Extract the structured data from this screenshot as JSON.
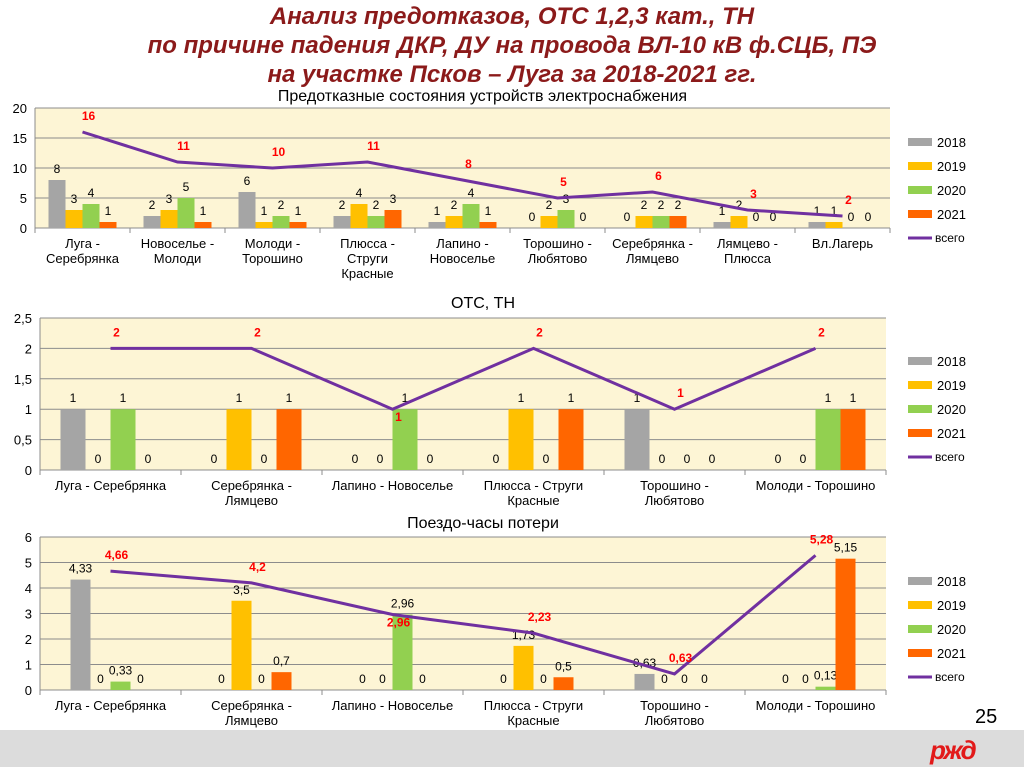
{
  "slide": {
    "title_lines": [
      "Анализ предотказов, ОТС 1,2,3 кат., ТН",
      "по причине падения ДКР, ДУ на провода ВЛ-10 кВ ф.СЦБ, ПЭ",
      "на участке Псков – Луга за 2018-2021 гг."
    ],
    "page_number": "25",
    "logo_text": "РЖД"
  },
  "colors": {
    "2018": "#A5A5A5",
    "2019": "#FFC000",
    "2020": "#92D050",
    "2021": "#FF6600",
    "total": "#7030A0",
    "plot_bg": "#FDF5D5",
    "total_label": "#FF0000"
  },
  "chart_data": [
    {
      "type": "bar",
      "title": "Предотказные состояния устройств электроснабжения",
      "ylim": [
        0,
        20
      ],
      "yticks": [
        0,
        5,
        10,
        15,
        20
      ],
      "grid": true,
      "legend": "right",
      "categories": [
        [
          "Луга -",
          "Серебрянка"
        ],
        [
          "Новоселье -",
          "Молоди"
        ],
        [
          "Молоди -",
          "Торошино"
        ],
        [
          "Плюсса -",
          "Струги",
          "Красные"
        ],
        [
          "Лапино -",
          "Новоселье"
        ],
        [
          "Торошино -",
          "Любятово"
        ],
        [
          "Серебрянка -",
          "Лямцево"
        ],
        [
          "Лямцево -",
          "Плюсса"
        ],
        [
          "Вл.Лагерь"
        ]
      ],
      "series": [
        {
          "name": "2018",
          "values": [
            8,
            2,
            6,
            2,
            1,
            0,
            0,
            1,
            1
          ]
        },
        {
          "name": "2019",
          "values": [
            3,
            3,
            1,
            4,
            2,
            2,
            2,
            2,
            1
          ]
        },
        {
          "name": "2020",
          "values": [
            4,
            5,
            2,
            2,
            4,
            3,
            2,
            0,
            0
          ]
        },
        {
          "name": "2021",
          "values": [
            1,
            1,
            1,
            3,
            1,
            0,
            2,
            0,
            0
          ]
        }
      ],
      "line": {
        "name": "всего",
        "values": [
          16,
          11,
          10,
          11,
          8,
          5,
          6,
          3,
          2
        ]
      }
    },
    {
      "type": "bar",
      "title": "ОТС, ТН",
      "ylim": [
        0,
        2.5
      ],
      "yticks": [
        0,
        0.5,
        1,
        1.5,
        2,
        2.5
      ],
      "grid": true,
      "legend": "right",
      "categories": [
        [
          "Луга - Серебрянка"
        ],
        [
          "Серебрянка -",
          "Лямцево"
        ],
        [
          "Лапино - Новоселье"
        ],
        [
          "Плюсса - Струги",
          "Красные"
        ],
        [
          "Торошино -",
          "Любятово"
        ],
        [
          "Молоди - Торошино"
        ]
      ],
      "series": [
        {
          "name": "2018",
          "values": [
            1,
            0,
            0,
            0,
            1,
            0
          ]
        },
        {
          "name": "2019",
          "values": [
            0,
            1,
            0,
            1,
            0,
            0
          ]
        },
        {
          "name": "2020",
          "values": [
            1,
            0,
            1,
            0,
            0,
            1
          ]
        },
        {
          "name": "2021",
          "values": [
            0,
            1,
            0,
            1,
            0,
            1
          ]
        }
      ],
      "line": {
        "name": "всего",
        "values": [
          2,
          2,
          1,
          2,
          1,
          2
        ]
      }
    },
    {
      "type": "bar",
      "title": "Поездо-часы потери",
      "ylim": [
        0,
        6
      ],
      "yticks": [
        0,
        1,
        2,
        3,
        4,
        5,
        6
      ],
      "grid": true,
      "legend": "right",
      "categories": [
        [
          "Луга - Серебрянка"
        ],
        [
          "Серебрянка -",
          "Лямцево"
        ],
        [
          "Лапино - Новоселье"
        ],
        [
          "Плюсса - Струги",
          "Красные"
        ],
        [
          "Торошино -",
          "Любятово"
        ],
        [
          "Молоди - Торошино"
        ]
      ],
      "series": [
        {
          "name": "2018",
          "values": [
            4.33,
            0,
            0,
            0,
            0.63,
            0
          ]
        },
        {
          "name": "2019",
          "values": [
            0,
            3.5,
            0,
            1.73,
            0,
            0
          ]
        },
        {
          "name": "2020",
          "values": [
            0.33,
            0,
            2.96,
            0,
            0,
            0.13
          ]
        },
        {
          "name": "2021",
          "values": [
            0,
            0.7,
            0,
            0.5,
            0,
            5.15
          ]
        }
      ],
      "line": {
        "name": "всего",
        "values": [
          4.66,
          4.2,
          2.96,
          2.23,
          0.63,
          5.28
        ]
      }
    }
  ]
}
